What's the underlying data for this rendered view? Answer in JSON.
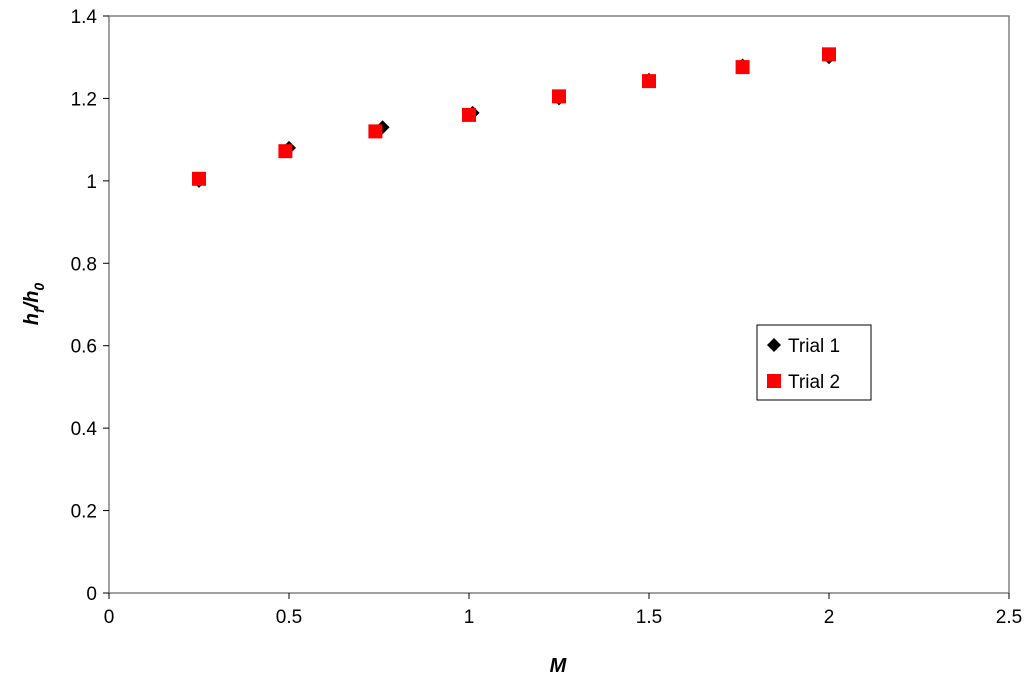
{
  "chart_data": {
    "type": "scatter",
    "title": "",
    "xlabel": "M",
    "ylabel": {
      "h1": "h",
      "s1": "f",
      "mid": "/h",
      "s2": "0"
    },
    "xlim": [
      0,
      2.5
    ],
    "ylim": [
      0,
      1.4
    ],
    "x_ticks": [
      0,
      0.5,
      1,
      1.5,
      2,
      2.5
    ],
    "x_tick_labels": [
      "0",
      "0.5",
      "1",
      "1.5",
      "2",
      "2.5"
    ],
    "y_ticks": [
      0,
      0.2,
      0.4,
      0.6,
      0.8,
      1,
      1.2,
      1.4
    ],
    "y_tick_labels": [
      "0",
      "0.2",
      "0.4",
      "0.6",
      "0.8",
      "1",
      "1.2",
      "1.4"
    ],
    "grid": false,
    "legend_position": "right",
    "series": [
      {
        "name": "Trial 1",
        "marker": "diamond",
        "color": "#000000",
        "x": [
          0.25,
          0.5,
          0.76,
          1.01,
          1.25,
          1.5,
          1.76,
          2.0
        ],
        "y": [
          1.0,
          1.08,
          1.13,
          1.165,
          1.2,
          1.245,
          1.28,
          1.3
        ]
      },
      {
        "name": "Trial 2",
        "marker": "square",
        "color": "#ff0000",
        "x": [
          0.25,
          0.49,
          0.74,
          1.0,
          1.25,
          1.5,
          1.76,
          2.0
        ],
        "y": [
          1.005,
          1.072,
          1.12,
          1.16,
          1.205,
          1.242,
          1.276,
          1.307
        ]
      }
    ]
  }
}
